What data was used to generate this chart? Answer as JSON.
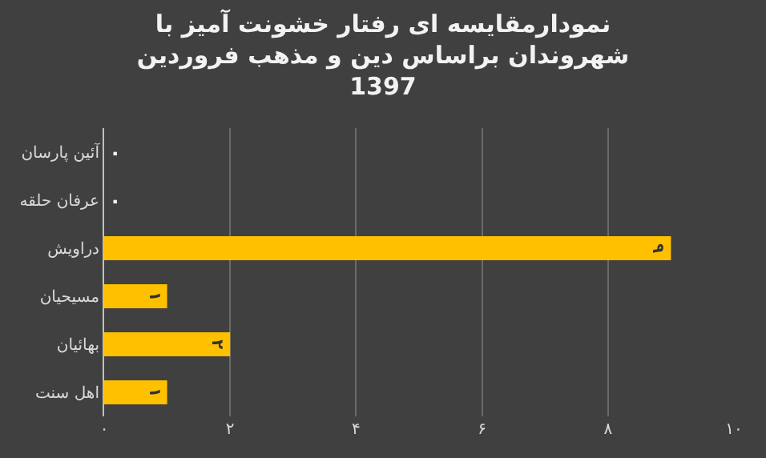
{
  "chart_data": {
    "type": "bar",
    "orientation": "horizontal",
    "title": "نمودارمقایسه ای رفتار خشونت آمیز با\nشهروندان براساس دین و مذهب فروردین\n1397",
    "categories": [
      "آئین پارسان",
      "عرفان حلقه",
      "دراویش",
      "مسیحیان",
      "بهائیان",
      "اهل سنت"
    ],
    "values": [
      0,
      0,
      9,
      1,
      2,
      1
    ],
    "value_labels": [
      "۰",
      "۰",
      "۹",
      "۱",
      "۲",
      "۱"
    ],
    "color": "#ffc000",
    "xlim": [
      0,
      10
    ],
    "xticks": [
      {
        "value": 0,
        "label": "۰"
      },
      {
        "value": 2,
        "label": "۲"
      },
      {
        "value": 4,
        "label": "۴"
      },
      {
        "value": 6,
        "label": "۶"
      },
      {
        "value": 8,
        "label": "۸"
      },
      {
        "value": 10,
        "label": "۱۰"
      }
    ],
    "grid": "x"
  }
}
